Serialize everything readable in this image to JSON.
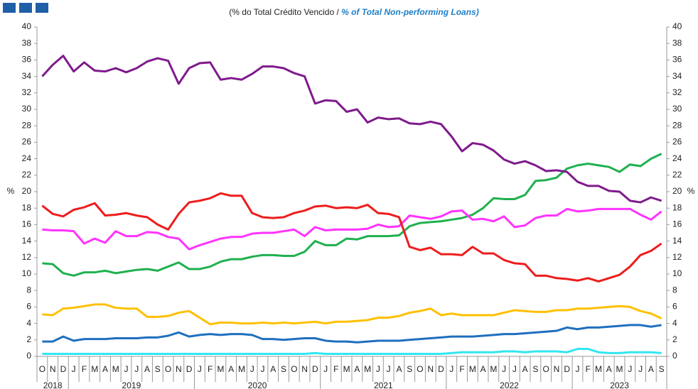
{
  "chart_data": {
    "type": "line",
    "title": "(% do Total Crédito Vencido / ",
    "title_en": "% of Total Non-performing Loans)",
    "ylabel": "%",
    "y2label": "%",
    "categories": [
      "O",
      "N",
      "D",
      "J",
      "F",
      "M",
      "A",
      "M",
      "J",
      "J",
      "A",
      "S",
      "O",
      "N",
      "D",
      "J",
      "F",
      "M",
      "A",
      "M",
      "J",
      "J",
      "A",
      "S",
      "O",
      "N",
      "D",
      "J",
      "F",
      "M",
      "A",
      "M",
      "J",
      "J",
      "A",
      "S",
      "O",
      "N",
      "D",
      "J",
      "F",
      "M",
      "A",
      "M",
      "J",
      "J",
      "A",
      "S",
      "O",
      "N",
      "D",
      "J",
      "F",
      "M",
      "A",
      "M",
      "J",
      "J",
      "A",
      "S"
    ],
    "years": [
      "2018",
      "2019",
      "2020",
      "2021",
      "2022",
      "2023"
    ],
    "ylim": [
      0,
      40
    ],
    "yticks": [
      0,
      2,
      4,
      6,
      8,
      10,
      12,
      14,
      16,
      18,
      20,
      22,
      24,
      26,
      28,
      30,
      32,
      34,
      36,
      38,
      40
    ],
    "y2lim": [
      0,
      40
    ],
    "y2ticks": [
      0,
      2,
      4,
      6,
      8,
      10,
      12,
      14,
      16,
      18,
      20,
      22,
      24,
      26,
      28,
      30,
      32,
      34,
      36,
      38,
      40
    ],
    "series": [
      {
        "color": "#7f1a8c",
        "values": [
          34.0,
          35.4,
          36.5,
          34.6,
          35.7,
          34.7,
          34.6,
          35.0,
          34.5,
          35.0,
          35.8,
          36.2,
          35.9,
          33.1,
          35.0,
          35.6,
          35.7,
          33.6,
          33.8,
          33.6,
          34.3,
          35.2,
          35.2,
          35.0,
          34.4,
          34.0,
          30.7,
          31.1,
          31.0,
          29.7,
          30.0,
          28.4,
          29.0,
          28.8,
          28.9,
          28.3,
          28.2,
          28.5,
          28.2,
          26.7,
          24.9,
          25.9,
          25.7,
          25.0,
          23.9,
          23.4,
          23.7,
          23.2,
          22.5,
          22.6,
          22.4,
          21.2,
          20.7,
          20.7,
          20.1,
          20.0,
          18.9,
          18.7,
          19.3,
          18.9
        ]
      },
      {
        "color": "#ee1c1c",
        "values": [
          18.3,
          17.3,
          17.0,
          17.8,
          18.1,
          18.6,
          17.1,
          17.2,
          17.4,
          17.1,
          16.9,
          16.0,
          15.4,
          17.3,
          18.7,
          18.9,
          19.2,
          19.8,
          19.5,
          19.5,
          17.4,
          16.9,
          16.8,
          16.9,
          17.4,
          17.7,
          18.2,
          18.3,
          18.0,
          18.1,
          18.0,
          18.4,
          17.4,
          17.3,
          16.9,
          13.3,
          12.9,
          13.2,
          12.4,
          12.4,
          12.3,
          13.3,
          12.5,
          12.5,
          11.7,
          11.3,
          11.2,
          9.8,
          9.8,
          9.5,
          9.4,
          9.2,
          9.5,
          9.1,
          9.5,
          9.9,
          10.9,
          12.3,
          12.8,
          13.7
        ]
      },
      {
        "color": "#ff33ff",
        "values": [
          15.4,
          15.3,
          15.3,
          15.2,
          13.7,
          14.3,
          13.8,
          15.2,
          14.6,
          14.6,
          15.1,
          15.0,
          14.5,
          14.3,
          13.0,
          13.5,
          13.9,
          14.3,
          14.5,
          14.5,
          14.9,
          15.0,
          15.0,
          15.2,
          15.4,
          14.6,
          15.7,
          15.3,
          15.4,
          15.4,
          15.4,
          15.5,
          16.0,
          15.7,
          15.8,
          17.1,
          16.9,
          16.7,
          17.0,
          17.6,
          17.7,
          16.6,
          16.7,
          16.4,
          17.0,
          15.7,
          15.9,
          16.8,
          17.1,
          17.1,
          17.9,
          17.6,
          17.7,
          17.9,
          17.9,
          17.9,
          17.9,
          17.2,
          16.6,
          17.6
        ]
      },
      {
        "color": "#1fb04f",
        "values": [
          11.3,
          11.2,
          10.1,
          9.8,
          10.2,
          10.2,
          10.4,
          10.1,
          10.3,
          10.5,
          10.6,
          10.4,
          10.9,
          11.4,
          10.6,
          10.6,
          10.9,
          11.5,
          11.8,
          11.8,
          12.1,
          12.3,
          12.3,
          12.2,
          12.2,
          12.7,
          14.0,
          13.5,
          13.5,
          14.3,
          14.2,
          14.6,
          14.6,
          14.6,
          14.7,
          15.8,
          16.2,
          16.3,
          16.4,
          16.6,
          16.8,
          17.2,
          18.0,
          19.2,
          19.1,
          19.1,
          19.6,
          21.3,
          21.4,
          21.7,
          22.8,
          23.2,
          23.4,
          23.2,
          23.0,
          22.4,
          23.3,
          23.1,
          24.0,
          24.6
        ]
      },
      {
        "color": "#ffc000",
        "values": [
          5.1,
          5.0,
          5.8,
          5.9,
          6.1,
          6.3,
          6.3,
          5.9,
          5.8,
          5.8,
          4.8,
          4.8,
          4.9,
          5.3,
          5.5,
          4.7,
          3.9,
          4.1,
          4.1,
          4.0,
          4.0,
          4.1,
          4.0,
          4.1,
          4.0,
          4.1,
          4.2,
          4.0,
          4.2,
          4.2,
          4.3,
          4.4,
          4.7,
          4.7,
          4.9,
          5.3,
          5.5,
          5.8,
          5.0,
          5.2,
          5.0,
          5.0,
          5.0,
          5.0,
          5.3,
          5.6,
          5.5,
          5.4,
          5.4,
          5.6,
          5.6,
          5.8,
          5.8,
          5.9,
          6.0,
          6.1,
          6.0,
          5.5,
          5.2,
          4.6
        ]
      },
      {
        "color": "#1f6fbf",
        "values": [
          1.8,
          1.8,
          2.4,
          1.9,
          2.1,
          2.1,
          2.1,
          2.2,
          2.2,
          2.2,
          2.3,
          2.3,
          2.5,
          2.9,
          2.4,
          2.6,
          2.7,
          2.6,
          2.7,
          2.7,
          2.6,
          2.1,
          2.1,
          2.0,
          2.1,
          2.2,
          2.2,
          1.9,
          1.8,
          1.8,
          1.7,
          1.8,
          1.9,
          1.9,
          1.9,
          2.0,
          2.1,
          2.2,
          2.3,
          2.4,
          2.4,
          2.4,
          2.5,
          2.6,
          2.7,
          2.7,
          2.8,
          2.9,
          3.0,
          3.1,
          3.5,
          3.3,
          3.5,
          3.5,
          3.6,
          3.7,
          3.8,
          3.8,
          3.6,
          3.8
        ]
      },
      {
        "color": "#33e6f0",
        "values": [
          0.3,
          0.3,
          0.3,
          0.3,
          0.3,
          0.3,
          0.3,
          0.3,
          0.3,
          0.3,
          0.3,
          0.3,
          0.3,
          0.3,
          0.3,
          0.3,
          0.3,
          0.3,
          0.3,
          0.3,
          0.3,
          0.3,
          0.3,
          0.3,
          0.3,
          0.3,
          0.4,
          0.3,
          0.3,
          0.3,
          0.3,
          0.3,
          0.3,
          0.3,
          0.3,
          0.3,
          0.3,
          0.3,
          0.3,
          0.4,
          0.5,
          0.5,
          0.5,
          0.5,
          0.6,
          0.6,
          0.5,
          0.6,
          0.6,
          0.6,
          0.5,
          0.9,
          0.9,
          0.5,
          0.4,
          0.4,
          0.5,
          0.5,
          0.5,
          0.4
        ]
      }
    ]
  }
}
